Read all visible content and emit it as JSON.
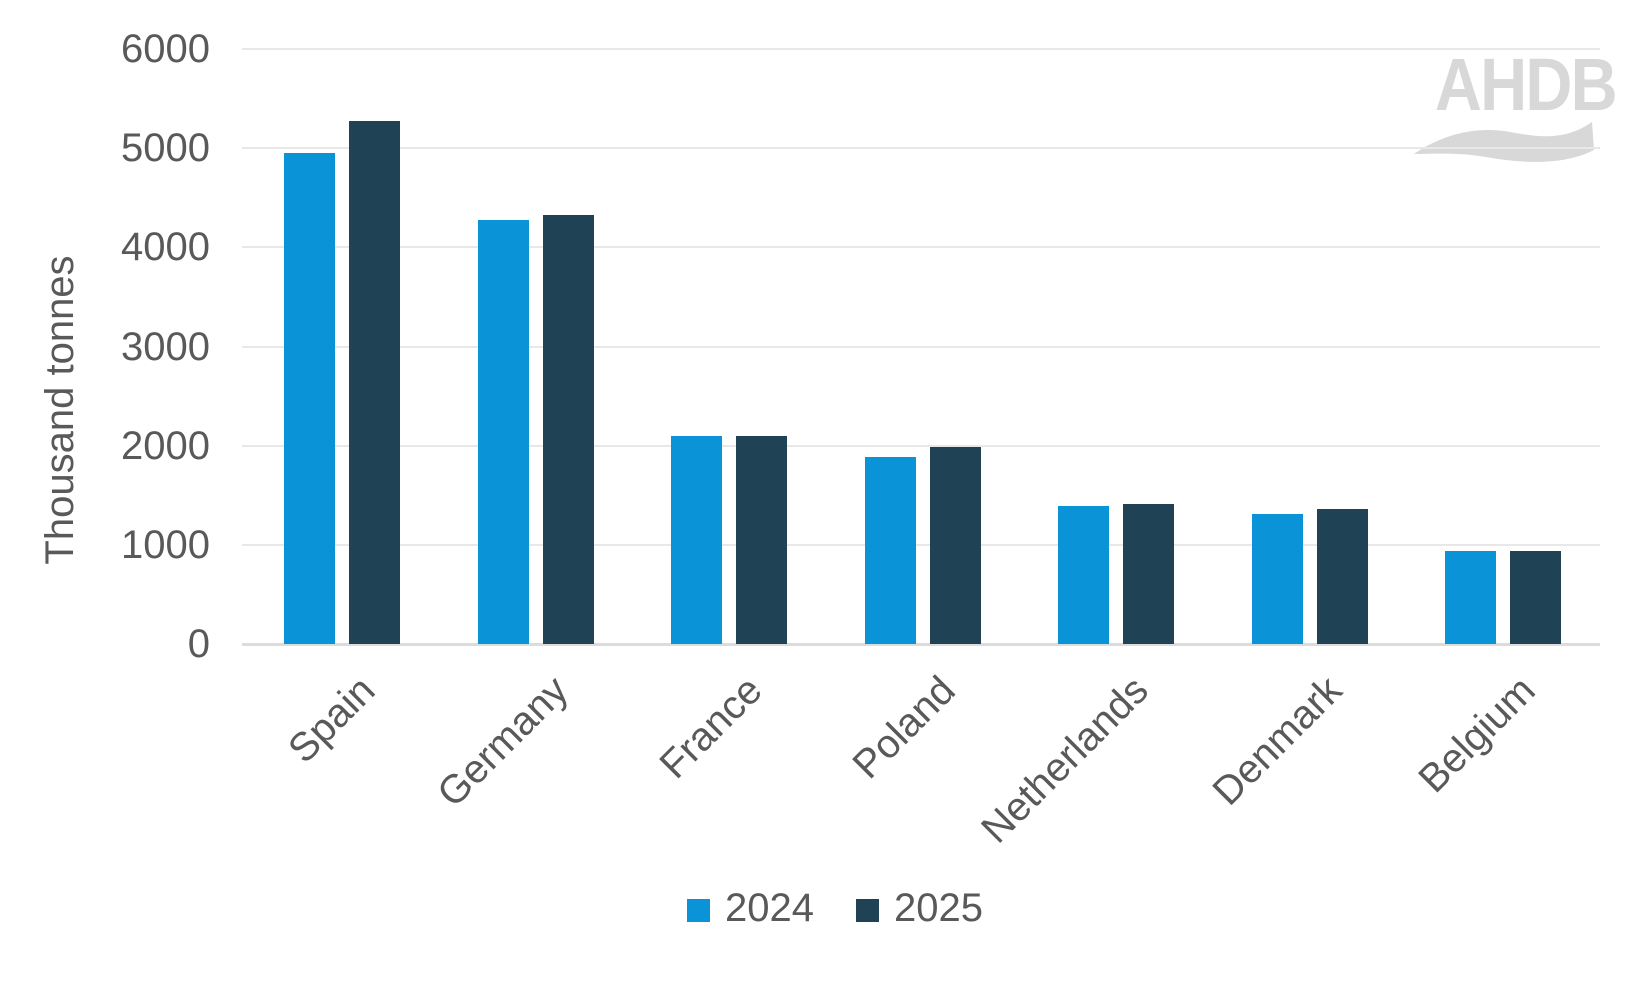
{
  "chart_data": {
    "type": "bar",
    "title": "",
    "xlabel": "",
    "ylabel": "Thousand tonnes",
    "categories": [
      "Spain",
      "Germany",
      "France",
      "Poland",
      "Netherlands",
      "Denmark",
      "Belgium"
    ],
    "series": [
      {
        "name": "2024",
        "color": "#0b93d8",
        "values": [
          4950,
          4280,
          2100,
          1890,
          1390,
          1310,
          940
        ]
      },
      {
        "name": "2025",
        "color": "#1f4254",
        "values": [
          5270,
          4330,
          2100,
          1990,
          1410,
          1360,
          940
        ]
      }
    ],
    "ylim": [
      0,
      6000
    ],
    "yticks": [
      0,
      1000,
      2000,
      3000,
      4000,
      5000,
      6000
    ],
    "grid": true,
    "legend_position": "bottom",
    "watermark": "AHDB"
  },
  "colors": {
    "series_2024": "#0b93d8",
    "series_2025": "#1f4254",
    "axis_text": "#595959",
    "gridline": "#e8e8e9",
    "baseline": "#dcdcdc",
    "logo_grey": "#d8d8d8"
  }
}
